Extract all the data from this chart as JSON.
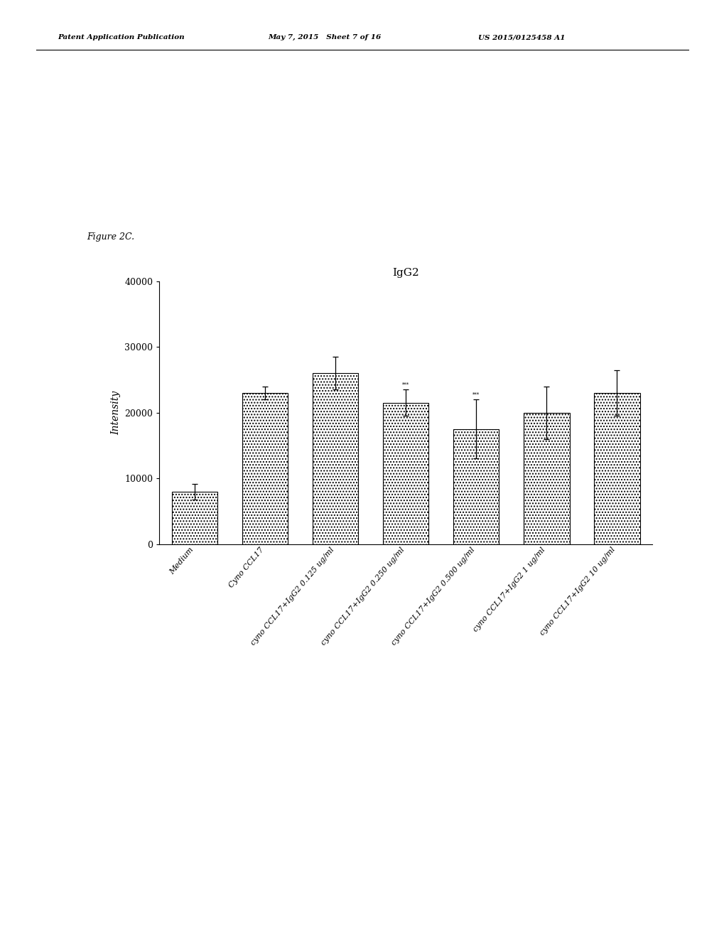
{
  "title": "IgG2",
  "ylabel": "Intensity",
  "ylim": [
    0,
    40000
  ],
  "yticks": [
    0,
    10000,
    20000,
    30000,
    40000
  ],
  "ytick_labels": [
    "0",
    "10000",
    "20000",
    "30000",
    "40000"
  ],
  "categories": [
    "Medium",
    "Cyno CCL17",
    "cyno CCL17+IgG2 0.125 ug/ml",
    "cyno CCL17+IgG2 0.250 ug/ml",
    "cyno CCL17+IgG2 0.500 ug/ml",
    "cyno CCL17+IgG2 1 ug/ml",
    "cyno CCL17+IgG2 10 ug/ml"
  ],
  "values": [
    8000,
    23000,
    26000,
    21500,
    17500,
    20000,
    23000
  ],
  "errors": [
    1200,
    1000,
    2500,
    2000,
    4500,
    4000,
    3500
  ],
  "bar_edgecolor": "#000000",
  "background_color": "#ffffff",
  "header_left": "Patent Application Publication",
  "header_mid": "May 7, 2015   Sheet 7 of 16",
  "header_right": "US 2015/0125458 A1",
  "figure_label": "Figure 2C.",
  "title_fontsize": 11,
  "ylabel_fontsize": 10,
  "tick_fontsize": 9,
  "xlabel_fontsize": 8,
  "header_fontsize": 7.5
}
